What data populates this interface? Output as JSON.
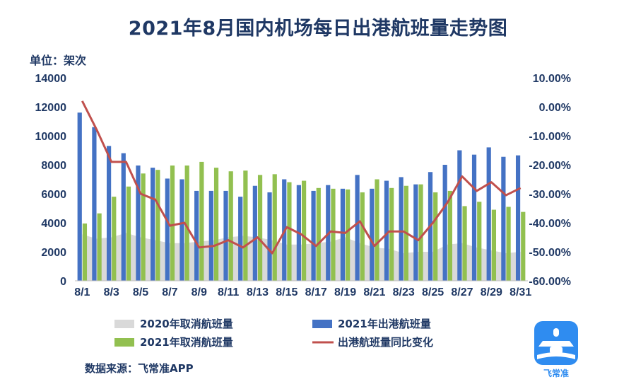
{
  "title": "2021年8月国内机场每日出港航班量走势图",
  "unit_label": "单位：架次",
  "source_label": "数据来源：飞常准APP",
  "logo_text": "飞常准",
  "colors": {
    "title": "#1f3864",
    "cancel_2020": "#d9d9d9",
    "depart_2021": "#4472c4",
    "cancel_2021": "#92c050",
    "yoy_line": "#c0504d",
    "logo": "#2f8cf0"
  },
  "chart_data": {
    "type": "bar",
    "title": "2021年8月国内机场每日出港航班量走势图",
    "ylabel": "单位：架次",
    "ylim": [
      0,
      14000
    ],
    "y2lim": [
      -60,
      10
    ],
    "categories": [
      "8/1",
      "8/2",
      "8/3",
      "8/4",
      "8/5",
      "8/6",
      "8/7",
      "8/8",
      "8/9",
      "8/10",
      "8/11",
      "8/12",
      "8/13",
      "8/14",
      "8/15",
      "8/16",
      "8/17",
      "8/18",
      "8/19",
      "8/20",
      "8/21",
      "8/22",
      "8/23",
      "8/24",
      "8/25",
      "8/26",
      "8/27",
      "8/28",
      "8/29",
      "8/30",
      "8/31"
    ],
    "x_tick_labels": [
      "8/1",
      "8/3",
      "8/5",
      "8/7",
      "8/9",
      "8/11",
      "8/13",
      "8/15",
      "8/17",
      "8/19",
      "8/21",
      "8/23",
      "8/25",
      "8/27",
      "8/29",
      "8/31"
    ],
    "y_tick_labels": [
      "0",
      "2000",
      "4000",
      "6000",
      "8000",
      "10000",
      "12000",
      "14000"
    ],
    "y2_tick_labels": [
      "-60.00%",
      "-50.00%",
      "-40.00%",
      "-30.00%",
      "-20.00%",
      "-10.00%",
      "0.00%",
      "10.00%"
    ],
    "series": [
      {
        "name": "2020年取消航班量",
        "kind": "area",
        "axis": "left",
        "values": [
          3200,
          2900,
          3000,
          3300,
          3000,
          2800,
          2600,
          2600,
          2700,
          2800,
          3000,
          3100,
          3000,
          2800,
          2500,
          2500,
          2600,
          2700,
          3000,
          2600,
          2300,
          2200,
          1900,
          2000,
          2000,
          2500,
          2600,
          2300,
          2100,
          1900,
          2000
        ]
      },
      {
        "name": "2021年出港航班量",
        "kind": "bar",
        "axis": "left",
        "values": [
          11600,
          10600,
          9300,
          8800,
          7950,
          7800,
          7050,
          7000,
          6200,
          6200,
          6200,
          5800,
          6550,
          6100,
          7000,
          6600,
          6200,
          6600,
          6350,
          7300,
          6350,
          6900,
          7150,
          6650,
          7500,
          8000,
          9000,
          8700,
          9200,
          8550,
          8650
        ]
      },
      {
        "name": "2021年取消航班量",
        "kind": "bar",
        "axis": "left",
        "values": [
          3950,
          4650,
          5800,
          6500,
          7400,
          7650,
          7950,
          7950,
          8200,
          7800,
          7550,
          7600,
          7300,
          7350,
          6800,
          6900,
          6400,
          6350,
          6300,
          6100,
          7000,
          6400,
          6550,
          6650,
          6100,
          6200,
          5150,
          5450,
          4900,
          5100,
          4750
        ]
      },
      {
        "name": "出港航班量同比变化",
        "kind": "line",
        "axis": "right",
        "values": [
          2.0,
          -8.0,
          -19.0,
          -19.0,
          -30.0,
          -32.0,
          -41.0,
          -40.0,
          -48.5,
          -48.0,
          -46.0,
          -48.5,
          -45.0,
          -50.5,
          -41.5,
          -44.0,
          -48.0,
          -43.0,
          -43.5,
          -39.5,
          -48.0,
          -43.0,
          -43.0,
          -46.0,
          -40.0,
          -33.0,
          -24.0,
          -29.0,
          -26.0,
          -30.5,
          -28.0
        ]
      }
    ],
    "grid": false,
    "legend_placement": "bottom"
  }
}
